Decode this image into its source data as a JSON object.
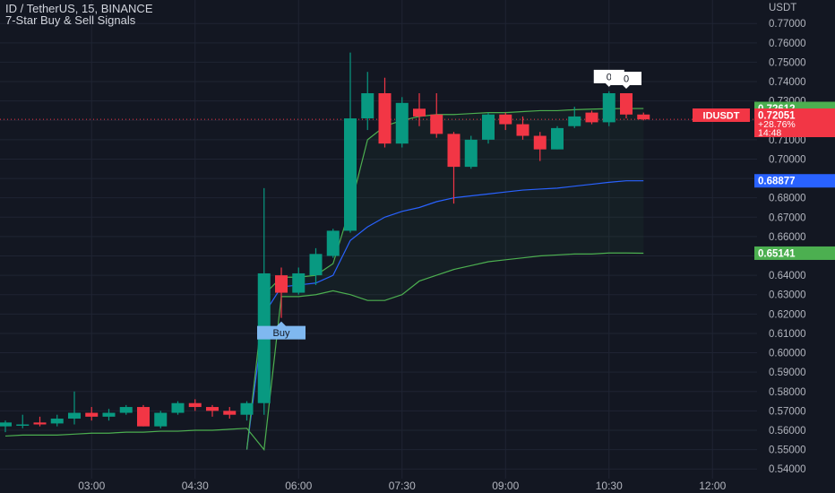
{
  "header": {
    "symbol_line": "ID / TetherUS, 15, BINANCE",
    "indicator_name": "7-Star Buy & Sell Signals"
  },
  "colors": {
    "background": "#131722",
    "up": "#089981",
    "down": "#f23645",
    "text": "#b2b5be",
    "grid": "#1f2433",
    "ma_green": "#4caf50",
    "ma_blue": "#2962ff",
    "buy_label_bg": "#7fb8f0"
  },
  "chart_data": {
    "type": "candlestick",
    "y_axis_title": "USDT",
    "ylim": [
      0.535,
      0.7775
    ],
    "y_ticks": [
      "0.77000",
      "0.76000",
      "0.75000",
      "0.74000",
      "0.73000",
      "0.72000",
      "0.71000",
      "0.70000",
      "0.69000",
      "0.68000",
      "0.67000",
      "0.66000",
      "0.65000",
      "0.64000",
      "0.63000",
      "0.62000",
      "0.61000",
      "0.60000",
      "0.59000",
      "0.58000",
      "0.57000",
      "0.56000",
      "0.55000",
      "0.54000"
    ],
    "x_ticks": [
      {
        "label": "03:00",
        "index": 5
      },
      {
        "label": "04:30",
        "index": 11
      },
      {
        "label": "06:00",
        "index": 17
      },
      {
        "label": "07:30",
        "index": 23
      },
      {
        "label": "09:00",
        "index": 29
      },
      {
        "label": "10:30",
        "index": 35
      },
      {
        "label": "12:00",
        "index": 41
      }
    ],
    "candles": [
      {
        "o": 0.562,
        "h": 0.565,
        "l": 0.559,
        "c": 0.564
      },
      {
        "o": 0.563,
        "h": 0.568,
        "l": 0.561,
        "c": 0.563
      },
      {
        "o": 0.564,
        "h": 0.567,
        "l": 0.562,
        "c": 0.563
      },
      {
        "o": 0.5635,
        "h": 0.568,
        "l": 0.562,
        "c": 0.566
      },
      {
        "o": 0.566,
        "h": 0.58,
        "l": 0.563,
        "c": 0.569
      },
      {
        "o": 0.569,
        "h": 0.572,
        "l": 0.565,
        "c": 0.567
      },
      {
        "o": 0.567,
        "h": 0.571,
        "l": 0.565,
        "c": 0.569
      },
      {
        "o": 0.569,
        "h": 0.573,
        "l": 0.568,
        "c": 0.572
      },
      {
        "o": 0.572,
        "h": 0.573,
        "l": 0.562,
        "c": 0.562
      },
      {
        "o": 0.562,
        "h": 0.57,
        "l": 0.561,
        "c": 0.569
      },
      {
        "o": 0.569,
        "h": 0.575,
        "l": 0.568,
        "c": 0.574
      },
      {
        "o": 0.574,
        "h": 0.576,
        "l": 0.57,
        "c": 0.572
      },
      {
        "o": 0.572,
        "h": 0.573,
        "l": 0.567,
        "c": 0.57
      },
      {
        "o": 0.57,
        "h": 0.572,
        "l": 0.566,
        "c": 0.568
      },
      {
        "o": 0.568,
        "h": 0.575,
        "l": 0.565,
        "c": 0.574
      },
      {
        "o": 0.574,
        "h": 0.685,
        "l": 0.568,
        "c": 0.641
      },
      {
        "o": 0.64,
        "h": 0.644,
        "l": 0.618,
        "c": 0.631
      },
      {
        "o": 0.631,
        "h": 0.644,
        "l": 0.63,
        "c": 0.641
      },
      {
        "o": 0.64,
        "h": 0.654,
        "l": 0.635,
        "c": 0.651
      },
      {
        "o": 0.65,
        "h": 0.664,
        "l": 0.649,
        "c": 0.663
      },
      {
        "o": 0.663,
        "h": 0.755,
        "l": 0.662,
        "c": 0.721
      },
      {
        "o": 0.721,
        "h": 0.745,
        "l": 0.715,
        "c": 0.734
      },
      {
        "o": 0.734,
        "h": 0.742,
        "l": 0.706,
        "c": 0.708
      },
      {
        "o": 0.708,
        "h": 0.732,
        "l": 0.706,
        "c": 0.729
      },
      {
        "o": 0.726,
        "h": 0.734,
        "l": 0.717,
        "c": 0.722
      },
      {
        "o": 0.723,
        "h": 0.734,
        "l": 0.711,
        "c": 0.713
      },
      {
        "o": 0.713,
        "h": 0.714,
        "l": 0.677,
        "c": 0.696
      },
      {
        "o": 0.696,
        "h": 0.712,
        "l": 0.695,
        "c": 0.71
      },
      {
        "o": 0.71,
        "h": 0.724,
        "l": 0.708,
        "c": 0.723
      },
      {
        "o": 0.723,
        "h": 0.724,
        "l": 0.715,
        "c": 0.718
      },
      {
        "o": 0.718,
        "h": 0.722,
        "l": 0.71,
        "c": 0.712
      },
      {
        "o": 0.712,
        "h": 0.714,
        "l": 0.699,
        "c": 0.705
      },
      {
        "o": 0.705,
        "h": 0.717,
        "l": 0.705,
        "c": 0.716
      },
      {
        "o": 0.717,
        "h": 0.727,
        "l": 0.716,
        "c": 0.722
      },
      {
        "o": 0.724,
        "h": 0.725,
        "l": 0.718,
        "c": 0.719
      },
      {
        "o": 0.719,
        "h": 0.735,
        "l": 0.717,
        "c": 0.734
      },
      {
        "o": 0.734,
        "h": 0.734,
        "l": 0.721,
        "c": 0.723
      },
      {
        "o": 0.723,
        "h": 0.724,
        "l": 0.72,
        "c": 0.7205
      }
    ],
    "series": [
      {
        "name": "",
        "color": "#4caf50",
        "values": [
          0.557,
          0.5575,
          0.5575,
          0.5575,
          0.558,
          0.5585,
          0.5585,
          0.559,
          0.559,
          0.5595,
          0.5595,
          0.56,
          0.56,
          0.5605,
          0.561,
          0.55,
          0.629,
          0.629,
          0.63,
          0.632,
          0.63,
          0.627,
          0.627,
          0.63,
          0.637,
          0.64,
          0.643,
          0.645,
          0.647,
          0.648,
          0.649,
          0.65,
          0.6505,
          0.651,
          0.651,
          0.6515,
          0.6515,
          0.6514
        ]
      },
      {
        "name": "",
        "color": "#2962ff",
        "values": [
          null,
          null,
          null,
          null,
          null,
          null,
          null,
          null,
          null,
          null,
          null,
          null,
          null,
          null,
          0.55,
          0.62,
          0.634,
          0.635,
          0.636,
          0.64,
          0.658,
          0.665,
          0.67,
          0.673,
          0.675,
          0.678,
          0.68,
          0.681,
          0.682,
          0.683,
          0.684,
          0.6845,
          0.685,
          0.686,
          0.687,
          0.688,
          0.6888,
          0.6888
        ]
      },
      {
        "name": "",
        "color": "#4caf50",
        "values": [
          null,
          null,
          null,
          null,
          null,
          null,
          null,
          null,
          null,
          null,
          null,
          null,
          null,
          null,
          0.55,
          0.63,
          0.639,
          0.639,
          0.64,
          0.646,
          0.675,
          0.71,
          0.717,
          0.72,
          0.722,
          0.723,
          0.723,
          0.7235,
          0.724,
          0.724,
          0.7245,
          0.725,
          0.725,
          0.7255,
          0.7258,
          0.726,
          0.7261,
          0.7261
        ]
      }
    ],
    "signals": [
      {
        "index": 16,
        "label": "Buy"
      },
      {
        "index": 35,
        "label": "0"
      },
      {
        "index": 36,
        "label": "0"
      }
    ],
    "price_labels": [
      {
        "text": "0.72612",
        "value": 0.72612,
        "color": "#4caf50"
      },
      {
        "text": "0.68877",
        "value": 0.68877,
        "color": "#2962ff"
      },
      {
        "text": "0.65141",
        "value": 0.65141,
        "color": "#4caf50"
      }
    ],
    "current_price": {
      "symbol": "IDUSDT",
      "price": "0.72051",
      "value": 0.72051,
      "change": "+28.76%",
      "countdown": "14:48",
      "color": "#f23645"
    }
  }
}
